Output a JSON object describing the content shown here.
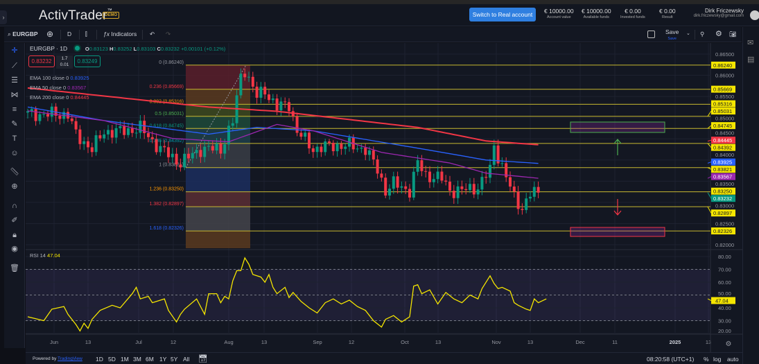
{
  "header": {
    "logo": "ActivTrader",
    "demo_badge": "DEMO",
    "switch_button": "Switch to Real account",
    "stats": [
      {
        "value": "€ 10000.00",
        "label": "Account value"
      },
      {
        "value": "€ 10000.00",
        "label": "Available funds"
      },
      {
        "value": "€ 0.00",
        "label": "Invested funds"
      },
      {
        "value": "€ 0.00",
        "label": "Result"
      }
    ],
    "user_name": "Dirk Friczewsky",
    "user_email": "dirk.friczewsky@gmail.com"
  },
  "toolbar": {
    "symbol": "EURGBP",
    "interval": "D",
    "indicators": "Indicators",
    "save": "Save",
    "save_sub": "Save"
  },
  "legend": {
    "title": "EURGBP · 1D",
    "o_label": "O",
    "o": "0.83123",
    "h_label": "H",
    "h": "0.83252",
    "l_label": "L",
    "l": "0.83103",
    "c_label": "C",
    "c": "0.83232",
    "change": "+0.00101 (+0.12%)",
    "sell": "0.83232",
    "spread_top": "1.7",
    "spread_bottom": "0.01",
    "buy": "0.83249",
    "ema": [
      {
        "name": "EMA",
        "params": "100 close 0",
        "value": "0.83925",
        "color": "#2962ff"
      },
      {
        "name": "EMA",
        "params": "50 close 0",
        "value": "0.83567",
        "color": "#9c27b0"
      },
      {
        "name": "EMA",
        "params": "200 close 0",
        "value": "0.84445",
        "color": "#f23645"
      }
    ]
  },
  "chart_data": {
    "type": "candlestick",
    "symbol": "EURGBP",
    "interval": "1D",
    "price_axis": {
      "range": [
        0.8195,
        0.8655
      ],
      "ticks": [
        "0.86500",
        "0.86000",
        "0.85500",
        "0.85000",
        "0.84500",
        "0.84000",
        "0.83500",
        "0.83000",
        "0.82500",
        "0.82000"
      ]
    },
    "time_axis": [
      "Jun",
      "13",
      "Jul",
      "12",
      "Aug",
      "13",
      "Sep",
      "12",
      "Oct",
      "13",
      "Nov",
      "13",
      "Dec",
      "11",
      "2025",
      "13"
    ],
    "close_path": [
      [
        0,
        0.8508
      ],
      [
        10,
        0.8508
      ],
      [
        12,
        0.8459
      ],
      [
        16,
        0.8426
      ],
      [
        19,
        0.8467
      ],
      [
        23,
        0.8467
      ],
      [
        28,
        0.8475
      ],
      [
        33,
        0.8426
      ],
      [
        38,
        0.8393
      ],
      [
        43,
        0.8426
      ],
      [
        48,
        0.8426
      ],
      [
        51,
        0.8491
      ],
      [
        53,
        0.8598
      ],
      [
        54,
        0.8614
      ],
      [
        57,
        0.8549
      ],
      [
        59,
        0.8565
      ],
      [
        62,
        0.8524
      ],
      [
        65,
        0.8532
      ],
      [
        67,
        0.8467
      ],
      [
        71,
        0.8426
      ],
      [
        76,
        0.8434
      ],
      [
        80,
        0.8434
      ],
      [
        84,
        0.8426
      ],
      [
        87,
        0.8377
      ],
      [
        89,
        0.8328
      ],
      [
        91,
        0.8344
      ],
      [
        95,
        0.8328
      ],
      [
        97,
        0.8393
      ],
      [
        99,
        0.8364
      ],
      [
        103,
        0.8356
      ],
      [
        105,
        0.8328
      ],
      [
        108,
        0.8328
      ],
      [
        112,
        0.8336
      ],
      [
        115,
        0.8377
      ],
      [
        116,
        0.8434
      ],
      [
        118,
        0.8385
      ],
      [
        121,
        0.8311
      ],
      [
        123,
        0.8287
      ],
      [
        125,
        0.832
      ],
      [
        127,
        0.8323
      ]
    ],
    "ema200_path": [
      [
        0,
        0.857
      ],
      [
        45,
        0.8525
      ],
      [
        62,
        0.8515
      ],
      [
        97,
        0.8477
      ],
      [
        114,
        0.8445
      ],
      [
        127,
        0.8436
      ]
    ],
    "ema100_path": [
      [
        0,
        0.8525
      ],
      [
        19,
        0.8493
      ],
      [
        45,
        0.8461
      ],
      [
        57,
        0.8477
      ],
      [
        71,
        0.8469
      ],
      [
        97,
        0.8428
      ],
      [
        114,
        0.84
      ],
      [
        127,
        0.8392
      ]
    ],
    "ema50_path": [
      [
        0,
        0.8516
      ],
      [
        19,
        0.8493
      ],
      [
        36,
        0.8451
      ],
      [
        50,
        0.8443
      ],
      [
        62,
        0.8484
      ],
      [
        71,
        0.8469
      ],
      [
        88,
        0.8418
      ],
      [
        105,
        0.8393
      ],
      [
        114,
        0.8369
      ],
      [
        127,
        0.8357
      ]
    ],
    "fib_levels": [
      {
        "ratio": "0",
        "price": 0.8624,
        "color": "#9598a1",
        "fill": "#5a1e2a"
      },
      {
        "ratio": "0.236",
        "price": 0.85669,
        "color": "#f23645",
        "fill": "#5a3a1e"
      },
      {
        "ratio": "0.382",
        "price": 0.85316,
        "color": "#ff9800",
        "fill": "#3e4a1e"
      },
      {
        "ratio": "0.5",
        "price": 0.85031,
        "color": "#4caf50",
        "fill": "#1e4a3a"
      },
      {
        "ratio": "0.618",
        "price": 0.84745,
        "color": "#089981",
        "fill": "#1e3f4a"
      },
      {
        "ratio": "0.786",
        "price": 0.84392,
        "color": "#0097a7",
        "fill": "#3a3d45"
      },
      {
        "ratio": "1",
        "price": 0.83821,
        "color": "#9598a1",
        "fill": "#1c2e5e"
      },
      {
        "ratio": "1.236",
        "price": 0.8325,
        "color": "#ff9800",
        "fill": "#5a2e34"
      },
      {
        "ratio": "1.382",
        "price": 0.82897,
        "color": "#f23645",
        "fill": "#44444a"
      },
      {
        "ratio": "1.618",
        "price": 0.82326,
        "color": "#2962ff",
        "fill": "#5a3a1e"
      }
    ],
    "price_tags": [
      {
        "value": "0.86240",
        "bg": "#f5e600",
        "fg": "#131722"
      },
      {
        "value": "0.85669",
        "bg": "#f5e600",
        "fg": "#131722"
      },
      {
        "value": "0.85316",
        "bg": "#f5e600",
        "fg": "#131722"
      },
      {
        "value": "0.85031",
        "bg": "#f5e600",
        "fg": "#131722"
      },
      {
        "value": "0.84745",
        "bg": "#f5e600",
        "fg": "#131722"
      },
      {
        "value": "0.84445",
        "bg": "#f23645",
        "fg": "#ffffff"
      },
      {
        "value": "0.84392",
        "bg": "#f5e600",
        "fg": "#131722"
      },
      {
        "value": "0.83925",
        "bg": "#2962ff",
        "fg": "#ffffff"
      },
      {
        "value": "0.83821",
        "bg": "#f5e600",
        "fg": "#131722"
      },
      {
        "value": "0.83567",
        "bg": "#9c27b0",
        "fg": "#ffffff"
      },
      {
        "value": "0.83250",
        "bg": "#f5e600",
        "fg": "#131722"
      },
      {
        "value": "0.83232",
        "bg": "#089981",
        "fg": "#ffffff"
      },
      {
        "value": "0.82897",
        "bg": "#f5e600",
        "fg": "#131722"
      },
      {
        "value": "0.82326",
        "bg": "#f5e600",
        "fg": "#131722"
      }
    ],
    "rsi": {
      "label": "RSI",
      "period": "14",
      "value": "47.04",
      "range": [
        20,
        80
      ],
      "ticks": [
        "80.00",
        "70.00",
        "60.00",
        "50.00",
        "40.00",
        "30.00",
        "20.00"
      ],
      "band": [
        30,
        70
      ],
      "color": "#f5e600",
      "path": [
        [
          0,
          33
        ],
        [
          4,
          30
        ],
        [
          6,
          39
        ],
        [
          9,
          41
        ],
        [
          10,
          35
        ],
        [
          12,
          27
        ],
        [
          13,
          22
        ],
        [
          14,
          28
        ],
        [
          15,
          24
        ],
        [
          16,
          31
        ],
        [
          18,
          38
        ],
        [
          21,
          42
        ],
        [
          23,
          40
        ],
        [
          26,
          51
        ],
        [
          27,
          56
        ],
        [
          28,
          47
        ],
        [
          30,
          49
        ],
        [
          31,
          44
        ],
        [
          34,
          47
        ],
        [
          35,
          38
        ],
        [
          37,
          29
        ],
        [
          38,
          35
        ],
        [
          39,
          39
        ],
        [
          42,
          47
        ],
        [
          44,
          35
        ],
        [
          45,
          51
        ],
        [
          47,
          51
        ],
        [
          48,
          44
        ],
        [
          49,
          49
        ],
        [
          50,
          47
        ],
        [
          51,
          61
        ],
        [
          52,
          69
        ],
        [
          53,
          69
        ],
        [
          54,
          79
        ],
        [
          55,
          74
        ],
        [
          56,
          66
        ],
        [
          58,
          64
        ],
        [
          59,
          60
        ],
        [
          60,
          66
        ],
        [
          61,
          56
        ],
        [
          62,
          51
        ],
        [
          64,
          56
        ],
        [
          65,
          48
        ],
        [
          66,
          52
        ],
        [
          68,
          45
        ],
        [
          70,
          40
        ],
        [
          72,
          36
        ],
        [
          74,
          44
        ],
        [
          76,
          47
        ],
        [
          78,
          43
        ],
        [
          80,
          46
        ],
        [
          82,
          41
        ],
        [
          84,
          38
        ],
        [
          86,
          30
        ],
        [
          88,
          25
        ],
        [
          89,
          31
        ],
        [
          91,
          34
        ],
        [
          93,
          29
        ],
        [
          95,
          33
        ],
        [
          96,
          57
        ],
        [
          97,
          58
        ],
        [
          98,
          51
        ],
        [
          100,
          54
        ],
        [
          102,
          43
        ],
        [
          104,
          52
        ],
        [
          106,
          47
        ],
        [
          108,
          44
        ],
        [
          110,
          50
        ],
        [
          112,
          47
        ],
        [
          113,
          55
        ],
        [
          115,
          65
        ],
        [
          116,
          59
        ],
        [
          117,
          55
        ],
        [
          118,
          56
        ],
        [
          120,
          53
        ],
        [
          121,
          44
        ],
        [
          122,
          42
        ],
        [
          124,
          39
        ],
        [
          125,
          38
        ],
        [
          126,
          47
        ],
        [
          127,
          44
        ],
        [
          129,
          47
        ]
      ]
    }
  },
  "bottom": {
    "powered_by": "Powered by",
    "tradingview": "TradingView",
    "ranges": [
      "1D",
      "5D",
      "1M",
      "3M",
      "6M",
      "1Y",
      "5Y",
      "All"
    ],
    "clock": "08:20:58 (UTC+1)",
    "pct": "%",
    "log": "log",
    "auto": "auto"
  }
}
